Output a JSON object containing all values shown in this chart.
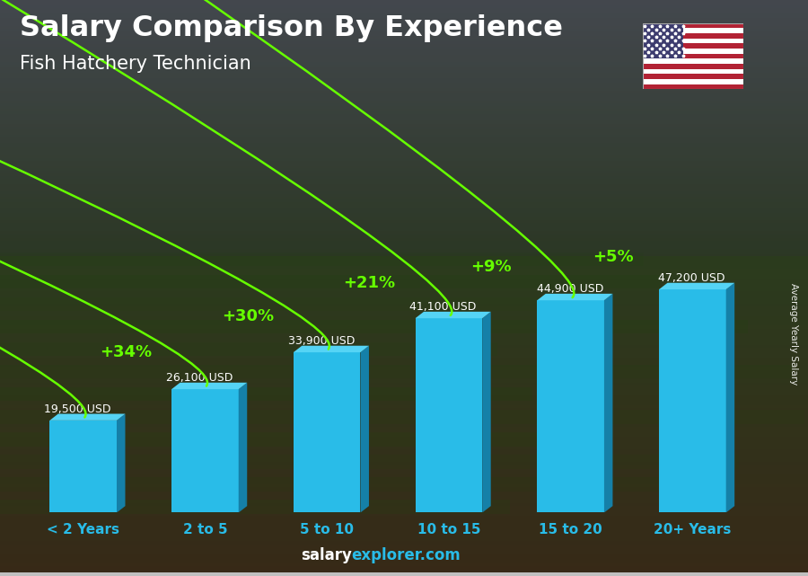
{
  "title": "Salary Comparison By Experience",
  "subtitle": "Fish Hatchery Technician",
  "categories": [
    "< 2 Years",
    "2 to 5",
    "5 to 10",
    "10 to 15",
    "15 to 20",
    "20+ Years"
  ],
  "values": [
    19500,
    26100,
    33900,
    41100,
    44900,
    47200
  ],
  "labels": [
    "19,500 USD",
    "26,100 USD",
    "33,900 USD",
    "41,100 USD",
    "44,900 USD",
    "47,200 USD"
  ],
  "pct_changes": [
    "+34%",
    "+30%",
    "+21%",
    "+9%",
    "+5%"
  ],
  "bar_color": "#29bce8",
  "bar_right_color": "#1580a8",
  "bar_top_color": "#55d4f5",
  "pct_color": "#66ff00",
  "label_color": "#ffffff",
  "title_color": "#ffffff",
  "subtitle_color": "#ffffff",
  "xlabel_color": "#29bce8",
  "bg_top": "#4a5560",
  "bg_bottom": "#2a3020",
  "ylabel_text": "Average Yearly Salary",
  "footer_salary_color": "#29bce8",
  "footer_explorer_color": "#ffffff"
}
